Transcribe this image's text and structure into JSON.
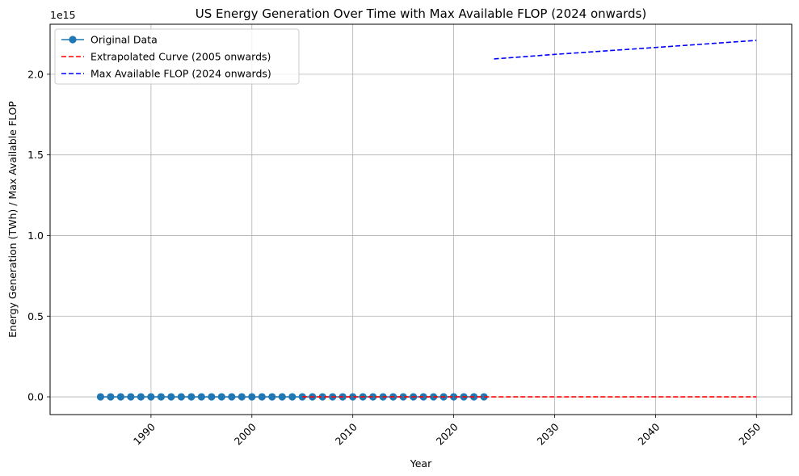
{
  "chart_data": {
    "type": "line",
    "title": "US Energy Generation Over Time with Max Available FLOP (2024 onwards)",
    "xlabel": "Year",
    "ylabel": "Energy Generation (TWh) / Max Available FLOP",
    "y_offset_label": "1e15",
    "xlim": [
      1980,
      2053.5
    ],
    "ylim": [
      -0.11,
      2.31
    ],
    "y_scale_exponent": 15,
    "x_ticks": [
      1990,
      2000,
      2010,
      2020,
      2030,
      2040,
      2050
    ],
    "x_tick_labels": [
      "1990",
      "2000",
      "2010",
      "2020",
      "2030",
      "2040",
      "2050"
    ],
    "y_ticks": [
      0.0,
      0.5,
      1.0,
      1.5,
      2.0
    ],
    "y_tick_labels": [
      "0.0",
      "0.5",
      "1.0",
      "1.5",
      "2.0"
    ],
    "x_tick_rotation": 45,
    "grid": true,
    "legend_position": "top-left",
    "series": [
      {
        "name": "Original Data",
        "style": "line-marker",
        "color": "#1f77b4",
        "x": [
          1985,
          1986,
          1987,
          1988,
          1989,
          1990,
          1991,
          1992,
          1993,
          1994,
          1995,
          1996,
          1997,
          1998,
          1999,
          2000,
          2001,
          2002,
          2003,
          2004,
          2005,
          2006,
          2007,
          2008,
          2009,
          2010,
          2011,
          2012,
          2013,
          2014,
          2015,
          2016,
          2017,
          2018,
          2019,
          2020,
          2021,
          2022,
          2023
        ],
        "y": [
          0,
          0,
          0,
          0,
          0,
          0,
          0,
          0,
          0,
          0,
          0,
          0,
          0,
          0,
          0,
          0,
          0,
          0,
          0,
          0,
          0,
          0,
          0,
          0,
          0,
          0,
          0,
          0,
          0,
          0,
          0,
          0,
          0,
          0,
          0,
          0,
          0,
          0,
          0
        ]
      },
      {
        "name": "Extrapolated Curve (2005 onwards)",
        "style": "dashed",
        "color": "#ff0000",
        "x": [
          2005,
          2050
        ],
        "y": [
          0,
          0
        ]
      },
      {
        "name": "Max Available FLOP (2024 onwards)",
        "style": "dashed",
        "color": "#0000ff",
        "x": [
          2024,
          2030,
          2040,
          2050
        ],
        "y": [
          2.095,
          2.123,
          2.166,
          2.21
        ]
      }
    ]
  }
}
